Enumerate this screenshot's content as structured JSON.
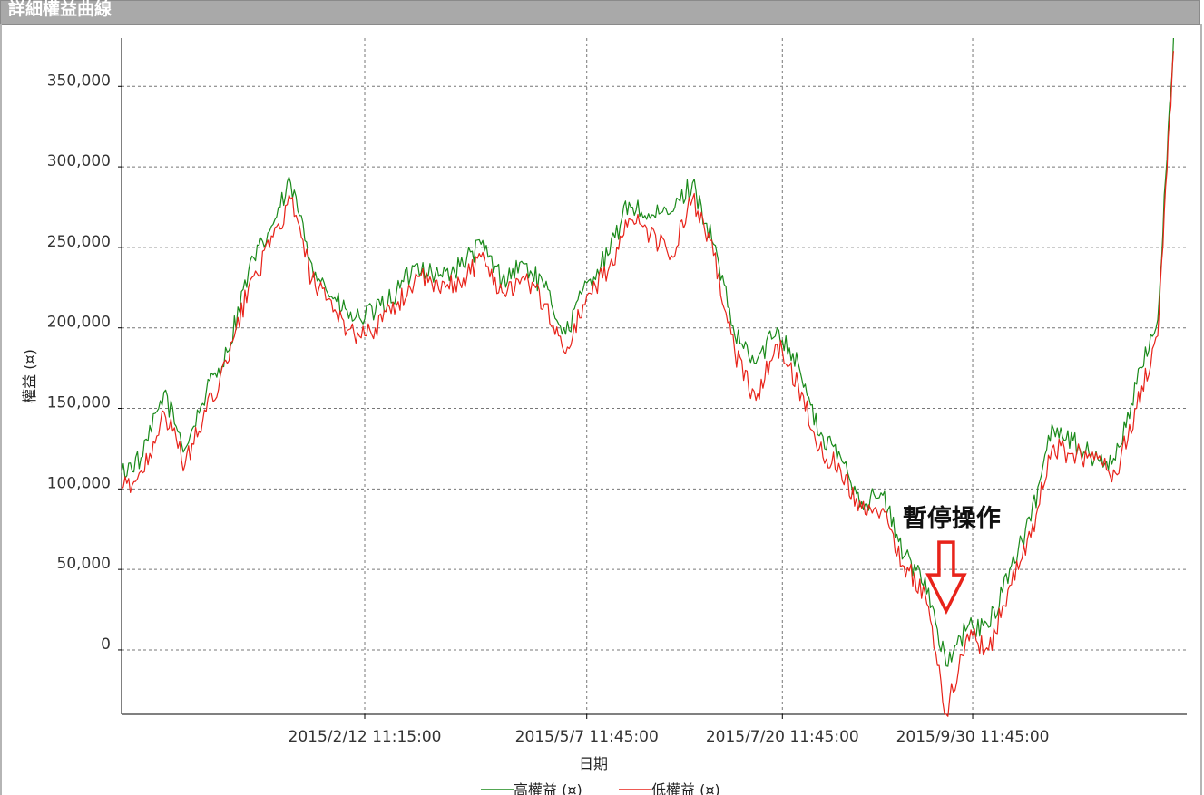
{
  "window": {
    "title": "詳細權益曲線"
  },
  "chart_data": {
    "type": "line",
    "title": "",
    "xlabel": "日期",
    "ylabel": "權益 (¤)",
    "ylim": [
      -40000,
      380000
    ],
    "y_ticks": [
      "0",
      "50,000",
      "100,000",
      "150,000",
      "200,000",
      "250,000",
      "300,000",
      "350,000"
    ],
    "y_tick_values": [
      0,
      50000,
      100000,
      150000,
      200000,
      250000,
      300000,
      350000
    ],
    "x_ticks": [
      "2015/2/12 11:15:00",
      "2015/5/7 11:45:00",
      "2015/7/20 11:45:00",
      "2015/9/30 11:45:00"
    ],
    "x_range": [
      "2014/11/12",
      "2015/12/20"
    ],
    "grid": true,
    "legend_position": "bottom-center",
    "series": [
      {
        "name": "高權益 (¤)",
        "color": "#1a8a1a",
        "x": [
          "2014/11/12",
          "2014/11/20",
          "2014/11/28",
          "2014/12/6",
          "2014/12/14",
          "2014/12/22",
          "2014/12/30",
          "2015/1/7",
          "2015/1/15",
          "2015/1/23",
          "2015/1/31",
          "2015/2/8",
          "2015/2/16",
          "2015/2/24",
          "2015/3/4",
          "2015/3/12",
          "2015/3/20",
          "2015/3/28",
          "2015/4/5",
          "2015/4/13",
          "2015/4/21",
          "2015/4/29",
          "2015/5/7",
          "2015/5/15",
          "2015/5/23",
          "2015/5/31",
          "2015/6/8",
          "2015/6/16",
          "2015/6/24",
          "2015/7/2",
          "2015/7/10",
          "2015/7/18",
          "2015/7/26",
          "2015/8/3",
          "2015/8/11",
          "2015/8/19",
          "2015/8/27",
          "2015/9/4",
          "2015/9/12",
          "2015/9/20",
          "2015/9/28",
          "2015/10/6",
          "2015/10/14",
          "2015/10/22",
          "2015/10/30",
          "2015/11/7",
          "2015/11/15",
          "2015/11/23",
          "2015/12/1",
          "2015/12/9",
          "2015/12/15"
        ],
        "values": [
          110000,
          120000,
          160000,
          125000,
          160000,
          185000,
          235000,
          260000,
          290000,
          240000,
          218000,
          205000,
          210000,
          222000,
          240000,
          232000,
          238000,
          252000,
          230000,
          240000,
          225000,
          196000,
          228000,
          245000,
          278000,
          268000,
          272000,
          290000,
          252000,
          195000,
          178000,
          200000,
          178000,
          133000,
          120000,
          92000,
          96000,
          58000,
          45000,
          -10000,
          14000,
          14000,
          50000,
          80000,
          140000,
          130000,
          118000,
          118000,
          165000,
          205000,
          380000
        ]
      },
      {
        "name": "低權益 (¤)",
        "color": "#e8231a",
        "x": [
          "2014/11/12",
          "2014/11/20",
          "2014/11/28",
          "2014/12/6",
          "2014/12/14",
          "2014/12/22",
          "2014/12/30",
          "2015/1/7",
          "2015/1/15",
          "2015/1/23",
          "2015/1/31",
          "2015/2/8",
          "2015/2/16",
          "2015/2/24",
          "2015/3/4",
          "2015/3/12",
          "2015/3/20",
          "2015/3/28",
          "2015/4/5",
          "2015/4/13",
          "2015/4/21",
          "2015/4/29",
          "2015/5/7",
          "2015/5/15",
          "2015/5/23",
          "2015/5/31",
          "2015/6/8",
          "2015/6/16",
          "2015/6/24",
          "2015/7/2",
          "2015/7/10",
          "2015/7/18",
          "2015/7/26",
          "2015/8/3",
          "2015/8/11",
          "2015/8/19",
          "2015/8/27",
          "2015/9/4",
          "2015/9/12",
          "2015/9/20",
          "2015/9/28",
          "2015/10/6",
          "2015/10/14",
          "2015/10/22",
          "2015/10/30",
          "2015/11/7",
          "2015/11/15",
          "2015/11/23",
          "2015/12/1",
          "2015/12/9",
          "2015/12/15"
        ],
        "values": [
          100000,
          110000,
          148000,
          115000,
          148000,
          178000,
          225000,
          250000,
          280000,
          230000,
          210000,
          196000,
          200000,
          214000,
          232000,
          224000,
          228000,
          244000,
          222000,
          232000,
          215000,
          184000,
          220000,
          235000,
          268000,
          258000,
          245000,
          280000,
          245000,
          185000,
          155000,
          190000,
          165000,
          125000,
          112000,
          88000,
          88000,
          52000,
          35000,
          -40000,
          10000,
          0,
          40000,
          70000,
          125000,
          122000,
          118000,
          110000,
          150000,
          195000,
          372000
        ]
      }
    ],
    "annotations": [
      {
        "text": "暫停操作",
        "x": "2015/9/20",
        "y": 23000
      }
    ]
  }
}
